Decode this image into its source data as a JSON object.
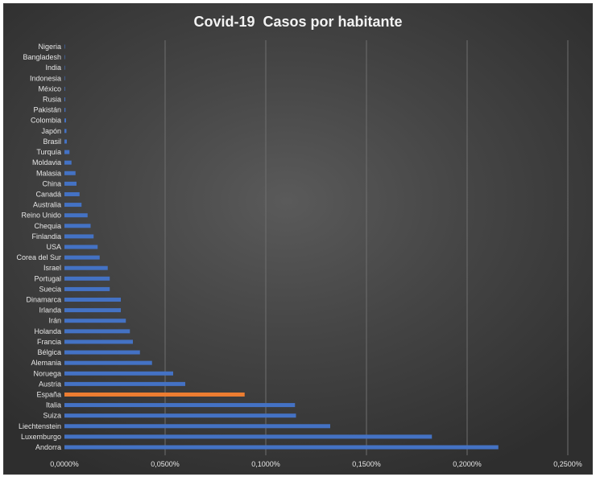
{
  "chart_data": {
    "type": "bar",
    "orientation": "horizontal",
    "title": "Covid-19  Casos por habitante",
    "xlabel": "",
    "ylabel": "",
    "xlim": [
      0,
      0.25
    ],
    "x_ticks": [
      0,
      0.05,
      0.1,
      0.15,
      0.2,
      0.25
    ],
    "x_tick_labels": [
      "0,0000%",
      "0,0500%",
      "0,1000%",
      "0,1500%",
      "0,2000%",
      "0,2500%"
    ],
    "grid": true,
    "legend": "none",
    "bar_color": "#4472c4",
    "highlight_color": "#ed7d31",
    "highlight_category": "España",
    "categories": [
      "Nigeria",
      "Bangladesh",
      "India",
      "Indonesia",
      "México",
      "Rusia",
      "Pakistán",
      "Colombia",
      "Japón",
      "Brasil",
      "Turquía",
      "Moldavia",
      "Malasia",
      "China",
      "Canadá",
      "Australia",
      "Reino Unido",
      "Chequia",
      "Finlandia",
      "USA",
      "Corea del Sur",
      "Israel",
      "Portugal",
      "Suecia",
      "Dinamarca",
      "Irlanda",
      "Irán",
      "Holanda",
      "Francia",
      "Bélgica",
      "Alemania",
      "Noruega",
      "Austria",
      "España",
      "Italia",
      "Suiza",
      "Liechtenstein",
      "Luxemburgo",
      "Andorra"
    ],
    "values": [
      0.0001,
      0.0001,
      0.0001,
      0.0002,
      0.0003,
      0.0004,
      0.0005,
      0.0008,
      0.001,
      0.0012,
      0.0025,
      0.0035,
      0.0055,
      0.006,
      0.0075,
      0.0085,
      0.0115,
      0.013,
      0.0145,
      0.0165,
      0.0175,
      0.0215,
      0.0225,
      0.0225,
      0.028,
      0.028,
      0.0305,
      0.0325,
      0.034,
      0.0375,
      0.0435,
      0.054,
      0.06,
      0.0895,
      0.1145,
      0.115,
      0.132,
      0.1825,
      0.2155
    ]
  }
}
